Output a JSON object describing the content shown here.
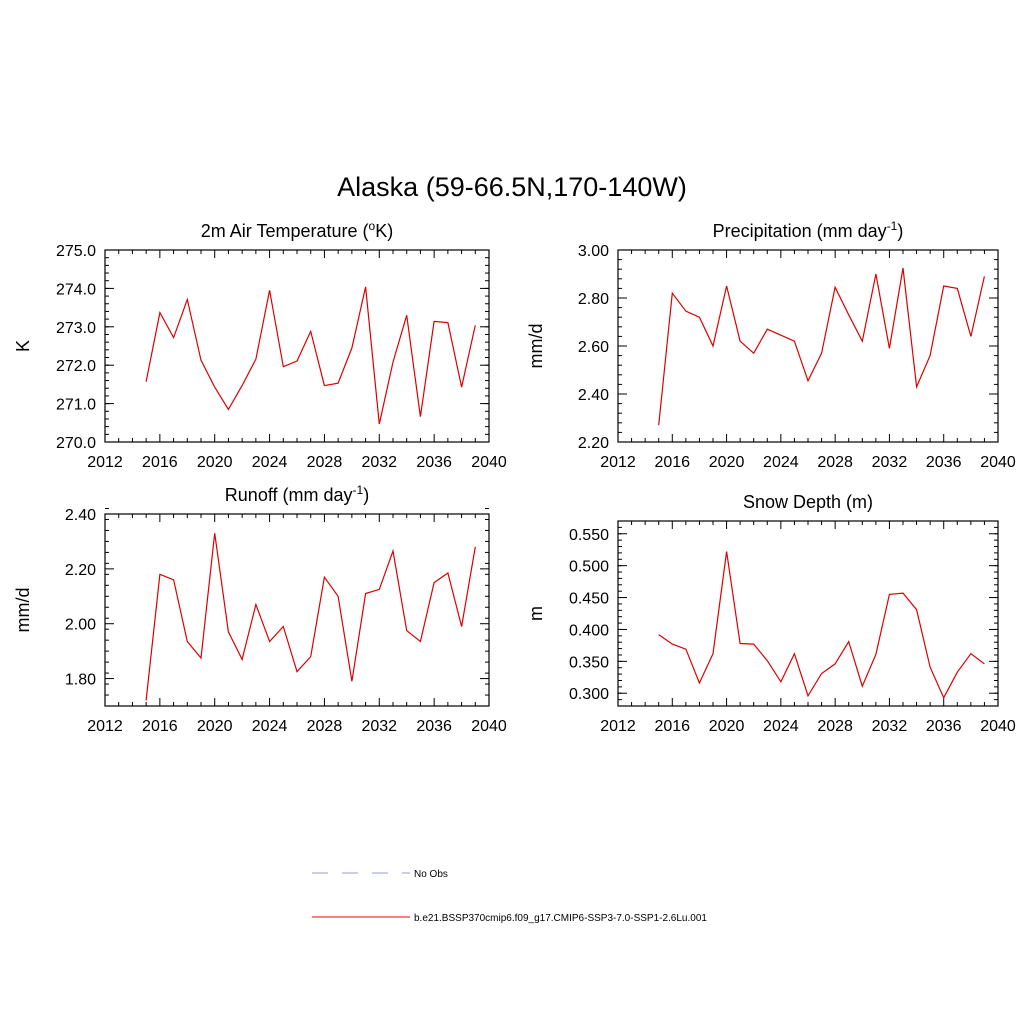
{
  "main_title": "Alaska (59-66.5N,170-140W)",
  "legend": {
    "entries": [
      {
        "label": "No Obs",
        "color": "#9999dd",
        "dash": true
      },
      {
        "label": "b.e21.BSSP370cmip6.f09_g17.CMIP6-SSP3-7.0-SSP1-2.6Lu.001",
        "color": "#ff0000",
        "dash": false
      }
    ]
  },
  "line_color": "#dd0000",
  "chart_data": [
    {
      "type": "line",
      "title_main": "2m Air Temperature (",
      "title_sup": "o",
      "title_rest": "K)",
      "ylabel": "K",
      "xlim": [
        2012,
        2040
      ],
      "ylim": [
        270.0,
        275.0
      ],
      "x_ticks": [
        2012,
        2016,
        2020,
        2024,
        2028,
        2032,
        2036,
        2040
      ],
      "y_ticks": [
        "270.0",
        "271.0",
        "272.0",
        "273.0",
        "274.0",
        "275.0"
      ],
      "y_tick_values": [
        270.0,
        271.0,
        272.0,
        273.0,
        274.0,
        275.0
      ],
      "y_minor": 0.2,
      "x": [
        2015,
        2016,
        2017,
        2018,
        2019,
        2020,
        2021,
        2022,
        2023,
        2024,
        2025,
        2026,
        2027,
        2028,
        2029,
        2030,
        2031,
        2032,
        2033,
        2034,
        2035,
        2036,
        2037,
        2038,
        2039
      ],
      "values": [
        271.57,
        273.37,
        272.72,
        273.71,
        272.13,
        271.43,
        270.85,
        271.47,
        272.16,
        273.95,
        271.96,
        272.11,
        272.88,
        271.47,
        271.53,
        272.45,
        274.04,
        270.47,
        272.08,
        273.3,
        270.66,
        273.14,
        273.11,
        271.43,
        273.04
      ]
    },
    {
      "type": "line",
      "title_main": "Precipitation (mm day",
      "title_sup": "-1",
      "title_rest": ")",
      "ylabel": "mm/d",
      "xlim": [
        2012,
        2040
      ],
      "ylim": [
        2.2,
        3.0
      ],
      "x_ticks": [
        2012,
        2016,
        2020,
        2024,
        2028,
        2032,
        2036,
        2040
      ],
      "y_ticks": [
        "2.20",
        "2.40",
        "2.60",
        "2.80",
        "3.00"
      ],
      "y_tick_values": [
        2.2,
        2.4,
        2.6,
        2.8,
        3.0
      ],
      "y_minor": 0.04,
      "x": [
        2015,
        2016,
        2017,
        2018,
        2019,
        2020,
        2021,
        2022,
        2023,
        2024,
        2025,
        2026,
        2027,
        2028,
        2029,
        2030,
        2031,
        2032,
        2033,
        2034,
        2035,
        2036,
        2037,
        2038,
        2039
      ],
      "values": [
        2.27,
        2.82,
        2.745,
        2.72,
        2.6,
        2.85,
        2.62,
        2.57,
        2.67,
        2.645,
        2.62,
        2.455,
        2.57,
        2.845,
        2.73,
        2.62,
        2.9,
        2.59,
        2.925,
        2.43,
        2.56,
        2.85,
        2.84,
        2.64,
        2.89
      ]
    },
    {
      "type": "line",
      "title_main": "Runoff (mm day",
      "title_sup": "-1",
      "title_rest": ")",
      "ylabel": "mm/d",
      "xlim": [
        2012,
        2040
      ],
      "ylim": [
        1.7,
        2.4
      ],
      "x_ticks": [
        2012,
        2016,
        2020,
        2024,
        2028,
        2032,
        2036,
        2040
      ],
      "y_ticks": [
        "1.80",
        "2.00",
        "2.20",
        "2.40"
      ],
      "y_tick_values": [
        1.8,
        2.0,
        2.2,
        2.4
      ],
      "y_minor": 0.04,
      "x": [
        2015,
        2016,
        2017,
        2018,
        2019,
        2020,
        2021,
        2022,
        2023,
        2024,
        2025,
        2026,
        2027,
        2028,
        2029,
        2030,
        2031,
        2032,
        2033,
        2034,
        2035,
        2036,
        2037,
        2038,
        2039
      ],
      "values": [
        1.72,
        2.18,
        2.16,
        1.935,
        1.875,
        2.33,
        1.97,
        1.87,
        2.07,
        1.935,
        1.99,
        1.825,
        1.88,
        2.17,
        2.1,
        1.79,
        2.11,
        2.125,
        2.265,
        1.975,
        1.935,
        2.15,
        2.185,
        1.99,
        2.28
      ]
    },
    {
      "type": "line",
      "title_main": "Snow Depth (m)",
      "title_sup": "",
      "title_rest": "",
      "ylabel": "m",
      "xlim": [
        2012,
        2040
      ],
      "ylim": [
        0.28,
        0.57
      ],
      "x_ticks": [
        2012,
        2016,
        2020,
        2024,
        2028,
        2032,
        2036,
        2040
      ],
      "y_ticks": [
        "0.300",
        "0.350",
        "0.400",
        "0.450",
        "0.500",
        "0.550"
      ],
      "y_tick_values": [
        0.3,
        0.35,
        0.4,
        0.45,
        0.5,
        0.55
      ],
      "y_minor": 0.01,
      "x": [
        2015,
        2016,
        2017,
        2018,
        2019,
        2020,
        2021,
        2022,
        2023,
        2024,
        2025,
        2026,
        2027,
        2028,
        2029,
        2030,
        2031,
        2032,
        2033,
        2034,
        2035,
        2036,
        2037,
        2038,
        2039
      ],
      "values": [
        0.392,
        0.377,
        0.369,
        0.316,
        0.362,
        0.522,
        0.378,
        0.377,
        0.351,
        0.318,
        0.362,
        0.296,
        0.331,
        0.346,
        0.381,
        0.311,
        0.361,
        0.455,
        0.457,
        0.431,
        0.341,
        0.293,
        0.333,
        0.362,
        0.346
      ]
    }
  ]
}
